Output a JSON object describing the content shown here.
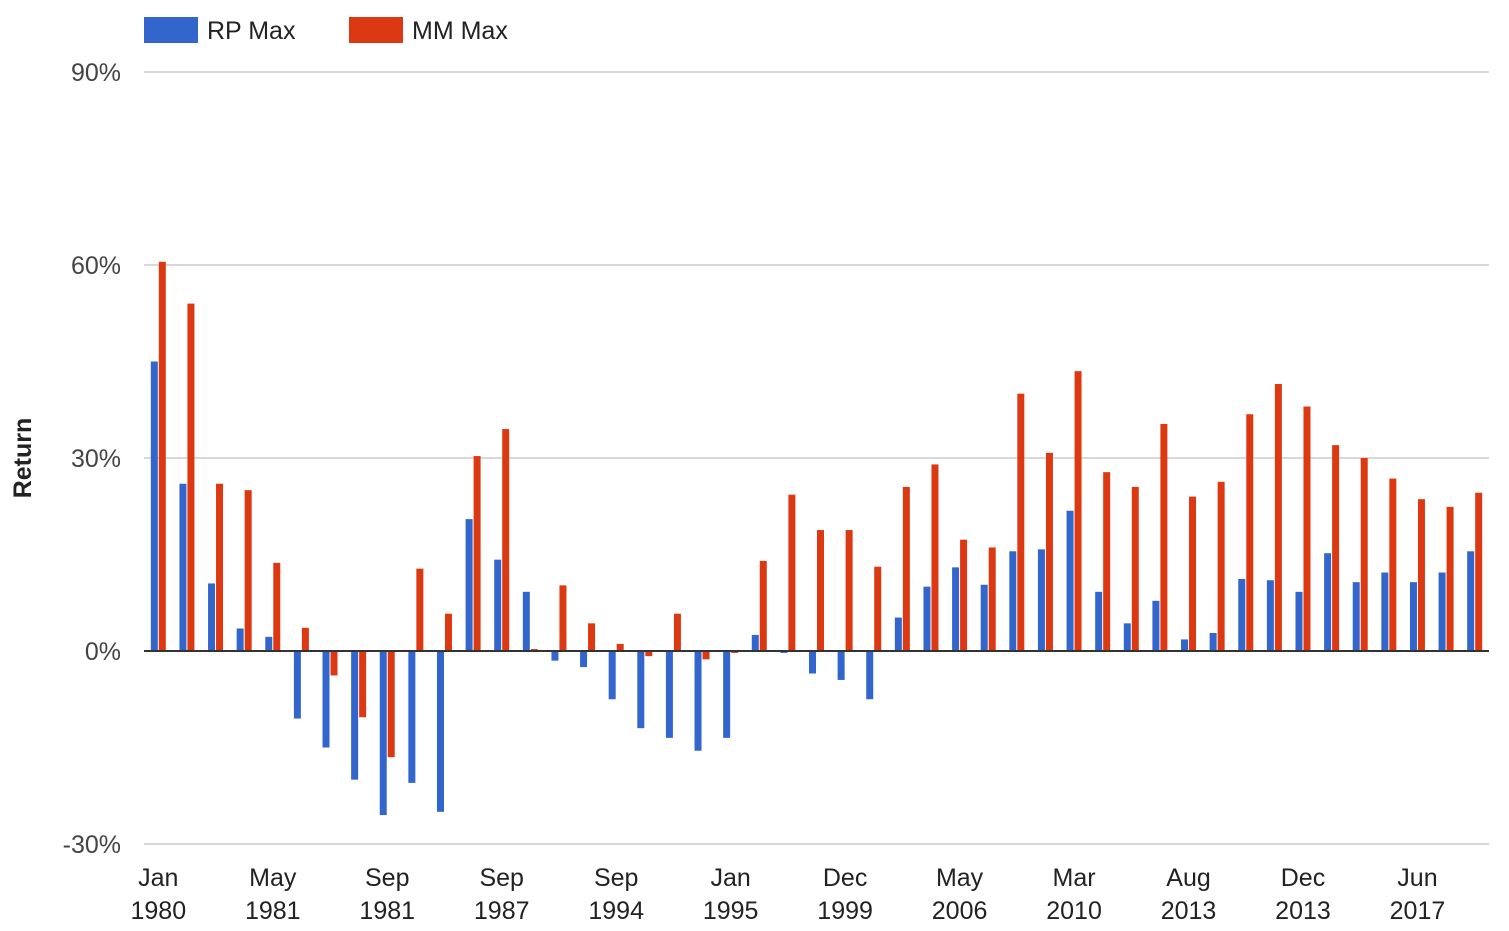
{
  "chart_data": {
    "type": "bar",
    "ylabel": "Return",
    "xlabel": "",
    "title": "",
    "ylim": [
      -30,
      90
    ],
    "yticks": [
      -30,
      0,
      30,
      60,
      90
    ],
    "ytick_labels": [
      "-30%",
      "0%",
      "30%",
      "60%",
      "90%"
    ],
    "grid": true,
    "legend_position": "top-left",
    "category_labels": [
      {
        "month": "Jan",
        "year": "1980"
      },
      {
        "month": "May",
        "year": "1981"
      },
      {
        "month": "Sep",
        "year": "1981"
      },
      {
        "month": "Sep",
        "year": "1987"
      },
      {
        "month": "Sep",
        "year": "1994"
      },
      {
        "month": "Jan",
        "year": "1995"
      },
      {
        "month": "Dec",
        "year": "1999"
      },
      {
        "month": "May",
        "year": "2006"
      },
      {
        "month": "Mar",
        "year": "2010"
      },
      {
        "month": "Aug",
        "year": "2013"
      },
      {
        "month": "Dec",
        "year": "2013"
      },
      {
        "month": "Jun",
        "year": "2017"
      }
    ],
    "series": [
      {
        "name": "RP Max",
        "color": "#3366cc",
        "values": [
          45,
          26,
          10.5,
          3.5,
          2.2,
          -10.5,
          -15,
          -20,
          -25.5,
          -20.5,
          -25,
          20.5,
          14.2,
          9.2,
          -1.5,
          -2.5,
          -7.5,
          -12,
          -13.5,
          -15.5,
          -13.5,
          2.5,
          -0.3,
          -3.5,
          -4.5,
          -7.5,
          5.2,
          10,
          13,
          10.3,
          15.5,
          15.8,
          21.8,
          9.2,
          4.3,
          7.8,
          1.8,
          2.8,
          11.2,
          11,
          9.2,
          15.2,
          10.7,
          12.2,
          10.7,
          12.2,
          15.5
        ]
      },
      {
        "name": "MM Max",
        "color": "#dc3912",
        "values": [
          60.5,
          54,
          26,
          25,
          13.7,
          3.6,
          -3.8,
          -10.3,
          -16.5,
          12.8,
          5.8,
          30.3,
          34.5,
          0.3,
          10.2,
          4.3,
          1.1,
          -0.8,
          5.8,
          -1.3,
          -0.3,
          14,
          24.3,
          18.8,
          18.8,
          13.1,
          25.5,
          29,
          17.3,
          16.1,
          40,
          30.8,
          43.5,
          27.8,
          25.5,
          35.3,
          24,
          26.3,
          36.8,
          41.5,
          38,
          32,
          30,
          26.8,
          23.6,
          22.4,
          24.6
        ]
      }
    ]
  }
}
